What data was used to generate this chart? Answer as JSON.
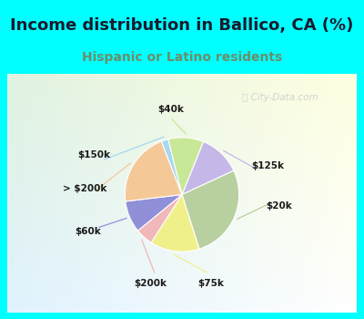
{
  "title": "Income distribution in Ballico, CA (%)",
  "subtitle": "Hispanic or Latino residents",
  "background_cyan": "#00FFFF",
  "background_chart": "#e8f8f0",
  "labels": [
    "$125k",
    "$20k",
    "$75k",
    "$200k",
    "$60k",
    "> $200k",
    "$150k",
    "$40k"
  ],
  "sizes": [
    12,
    27,
    14,
    5,
    9,
    21,
    2,
    10
  ],
  "colors": [
    "#c5b8e8",
    "#b8cfa0",
    "#f0f08a",
    "#f0b8b8",
    "#9090d8",
    "#f5c898",
    "#a8d8f0",
    "#c8e898"
  ],
  "line_colors": [
    "#c5b8e8",
    "#b8cfa0",
    "#f0f095",
    "#f0b8b8",
    "#9090d8",
    "#f5c898",
    "#a8d8f0",
    "#c8e898"
  ],
  "watermark": "City-Data.com",
  "subtitle_color": "#6b8e6b",
  "title_fontsize": 13,
  "subtitle_fontsize": 10
}
